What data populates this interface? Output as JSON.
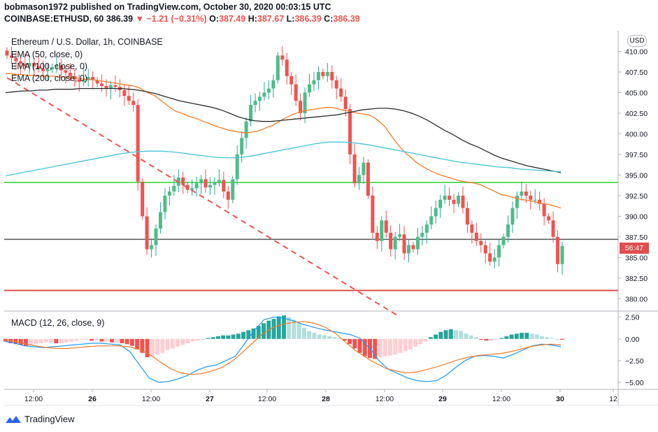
{
  "header": {
    "publisher_line": "bobmason1972 published on TradingView.com, October 30, 2020 00:03:15 UTC",
    "symbol": "COINBASE:ETHUSD, 60",
    "last": "386.39",
    "arrow": "▼",
    "change": "−1.21 (−0.31%)",
    "o_label": "O:",
    "o": "387.49",
    "h_label": "H:",
    "h": "387.67",
    "l_label": "L:",
    "l": "386.39",
    "c_label": "C:",
    "c": "386.39"
  },
  "legend": {
    "title": "Ethereum / U.S. Dollar, 1h, COINBASE",
    "ema50": "EMA (50, close, 0)",
    "ema100": "EMA (100, close, 0)",
    "ema200": "EMA (200, close, 0)",
    "macd": "MACD (12, 26, close, 9)"
  },
  "axis": {
    "currency": "USD",
    "countdown": "56:47"
  },
  "brand": "TradingView",
  "colors": {
    "up": "#26a69a",
    "up_candle": "#4fbc8a",
    "down": "#ef5350",
    "ema50": "#f57c2a",
    "ema100": "#2b2b2b",
    "ema200": "#45c3d8",
    "green_line": "#5ee05e",
    "red_line": "#e04e4e",
    "macd_line": "#2196f3",
    "signal_line": "#f57c2a"
  },
  "chart_data": {
    "type": "candlestick",
    "y_ticks": [
      "410.00",
      "407.50",
      "405.00",
      "402.50",
      "400.00",
      "397.50",
      "395.00",
      "392.50",
      "390.00",
      "387.50",
      "385.00",
      "382.50",
      "380.00"
    ],
    "ylim": [
      378.5,
      412.5
    ],
    "x_ticks": [
      "12:00",
      "26",
      "12:00",
      "27",
      "12:00",
      "28",
      "12:00",
      "29",
      "12:00",
      "30",
      "12"
    ],
    "x_tick_bold": [
      false,
      true,
      false,
      true,
      false,
      true,
      false,
      true,
      false,
      true,
      false
    ],
    "horizontal_levels": {
      "green": 394.1,
      "red": 381.0,
      "last_price": 387.2
    },
    "close_series": [
      409.5,
      409.2,
      408.8,
      408.5,
      408.2,
      408.6,
      408.2,
      407.9,
      407.6,
      407.8,
      408.1,
      408.3,
      407.7,
      407.4,
      407.0,
      406.6,
      406.3,
      406.5,
      406.9,
      406.5,
      406.1,
      405.8,
      405.5,
      405.9,
      405.7,
      405.3,
      404.6,
      404.0,
      403.5,
      394.2,
      390.0,
      386.0,
      386.5,
      388.5,
      390.5,
      392.5,
      393.0,
      393.7,
      394.7,
      393.8,
      393.2,
      393.4,
      394.0,
      394.5,
      393.5,
      393.8,
      394.1,
      394.4,
      393.0,
      392.0,
      394.5,
      397.5,
      399.5,
      401.5,
      403.5,
      404.0,
      404.5,
      405.0,
      405.5,
      406.5,
      409.5,
      409.0,
      407.0,
      406.0,
      404.0,
      402.5,
      405.0,
      406.0,
      406.5,
      407.5,
      407.0,
      407.5,
      406.5,
      405.5,
      404.5,
      403.0,
      397.5,
      394.0,
      395.0,
      396.5,
      392.5,
      388.0,
      387.0,
      389.5,
      388.0,
      386.0,
      387.5,
      387.8,
      385.5,
      386.5,
      386.0,
      387.5,
      388.0,
      389.0,
      390.0,
      391.0,
      392.0,
      392.5,
      392.0,
      391.5,
      392.5,
      391.0,
      389.0,
      388.0,
      387.0,
      386.5,
      385.5,
      384.5,
      385.0,
      386.5,
      387.5,
      389.0,
      391.0,
      392.5,
      393.0,
      392.5,
      392.0,
      392.0,
      391.5,
      390.0,
      389.5,
      387.5,
      384.2,
      386.4
    ],
    "ema_50": [
      407.3,
      407.3,
      407.2,
      407.2,
      407.1,
      407.1,
      407.0,
      407.0,
      407.0,
      407.0,
      406.9,
      406.9,
      406.8,
      406.8,
      406.7,
      406.6,
      406.6,
      406.5,
      406.4,
      406.3,
      406.2,
      406.1,
      406.0,
      405.9,
      405.8,
      405.6,
      405.2,
      404.9,
      404.6,
      404.1,
      403.6,
      403.1,
      402.7,
      402.5,
      402.2,
      402.0,
      401.8,
      401.5,
      401.3,
      401.0,
      400.8,
      400.6,
      400.4,
      400.3,
      400.2,
      400.1,
      400.2,
      400.3,
      400.5,
      400.8,
      401.0,
      401.4,
      401.8,
      402.1,
      402.4,
      402.6,
      402.8,
      402.9,
      403.0,
      403.1,
      403.2,
      403.2,
      403.1,
      402.9,
      402.8,
      402.6,
      402.5,
      402.4,
      402.3,
      402.0,
      401.5,
      400.9,
      400.0,
      399.1,
      398.3,
      397.6,
      397.1,
      396.5,
      396.1,
      395.7,
      395.4,
      395.1,
      394.9,
      394.7,
      394.5,
      394.3,
      394.2,
      394.1,
      394.0,
      393.8,
      393.5,
      393.2,
      392.9,
      392.6,
      392.5,
      392.3,
      392.1,
      392.0,
      391.9,
      391.8,
      391.6,
      391.5,
      391.4,
      391.2,
      391.0
    ],
    "ema_100": [
      405.0,
      405.1,
      405.2,
      405.2,
      405.3,
      405.3,
      405.4,
      405.4,
      405.4,
      405.5,
      405.5,
      405.5,
      405.5,
      405.5,
      405.5,
      405.4,
      405.3,
      405.1,
      404.9,
      404.6,
      404.3,
      404.0,
      403.8,
      403.6,
      403.4,
      403.2,
      402.9,
      402.5,
      402.1,
      401.8,
      401.6,
      401.5,
      401.5,
      401.6,
      401.7,
      401.8,
      401.9,
      402.0,
      402.1,
      402.2,
      402.3,
      402.5,
      402.7,
      402.9,
      403.0,
      403.1,
      403.1,
      403.0,
      402.8,
      402.5,
      402.1,
      401.6,
      401.0,
      400.4,
      399.9,
      399.3,
      398.8,
      398.4,
      397.9,
      397.4,
      397.0,
      396.7,
      396.4,
      396.1,
      395.9,
      395.7,
      395.5,
      395.3
    ],
    "ema_200": [
      394.9,
      395.2,
      395.5,
      395.8,
      396.1,
      396.4,
      396.7,
      397.0,
      397.3,
      397.6,
      397.8,
      397.9,
      397.9,
      397.8,
      397.6,
      397.4,
      397.2,
      397.1,
      397.1,
      397.3,
      397.6,
      397.9,
      398.2,
      398.5,
      398.8,
      399.0,
      399.0,
      398.9,
      398.7,
      398.4,
      398.1,
      397.8,
      397.5,
      397.2,
      396.9,
      396.6,
      396.4,
      396.2,
      396.0,
      395.9,
      395.7,
      395.6,
      395.5,
      395.4
    ],
    "trendline": {
      "from": [
        0,
        406.8
      ],
      "to": [
        87,
        377.8
      ],
      "style": "dashed"
    },
    "macd": {
      "y_ticks": [
        "2.50",
        "0.00",
        "−2.50",
        "−5.00"
      ],
      "ylim": [
        -5.8,
        3.2
      ],
      "histogram": [
        -0.3,
        -0.5,
        -0.6,
        -0.7,
        -0.8,
        -0.7,
        -0.6,
        -0.5,
        -0.4,
        -0.4,
        -0.5,
        -0.5,
        -0.4,
        -0.3,
        -0.2,
        -0.1,
        -0.1,
        -0.2,
        -0.2,
        -0.3,
        -0.3,
        -0.4,
        -0.4,
        -0.5,
        -0.6,
        -0.8,
        -1.2,
        -1.6,
        -2.1,
        -2.0,
        -1.8,
        -1.6,
        -1.3,
        -1.1,
        -0.9,
        -0.7,
        -0.5,
        -0.3,
        -0.2,
        -0.1,
        0.1,
        0.2,
        0.3,
        0.4,
        0.4,
        0.5,
        0.6,
        0.8,
        1.0,
        1.2,
        1.5,
        1.8,
        2.1,
        2.3,
        2.6,
        2.7,
        2.5,
        2.2,
        1.8,
        1.3,
        0.9,
        0.7,
        0.5,
        0.4,
        0.3,
        0.2,
        0.1,
        -0.2,
        -0.6,
        -1.1,
        -1.6,
        -2.0,
        -2.2,
        -2.3,
        -2.1,
        -2.0,
        -1.9,
        -1.8,
        -1.6,
        -1.4,
        -1.2,
        -0.9,
        -0.6,
        -0.3,
        0.2,
        0.5,
        0.8,
        1.0,
        1.1,
        1.0,
        0.9,
        0.6,
        0.4,
        0.2,
        -0.1,
        -0.2,
        -0.2,
        -0.1,
        0.1,
        0.3,
        0.5,
        0.6,
        0.7,
        0.7,
        0.6,
        0.5,
        0.3,
        0.2,
        0.1,
        0.0,
        -0.1
      ],
      "macd_line": [
        -0.3,
        -0.5,
        -0.8,
        -0.9,
        -1.0,
        -0.9,
        -0.8,
        -0.7,
        -0.6,
        -0.5,
        -0.5,
        -0.6,
        -0.7,
        -1.5,
        -3.0,
        -4.5,
        -5.0,
        -4.9,
        -4.6,
        -4.2,
        -3.6,
        -3.2,
        -3.0,
        -2.5,
        -2.0,
        -0.5,
        1.0,
        2.2,
        2.5,
        2.4,
        2.1,
        1.7,
        1.4,
        1.1,
        0.9,
        0.7,
        0.5,
        0.1,
        -1.0,
        -2.5,
        -3.5,
        -4.0,
        -4.5,
        -4.8,
        -4.9,
        -4.8,
        -4.2,
        -3.3,
        -2.5,
        -2.0,
        -1.9,
        -2.0,
        -2.2,
        -1.8,
        -1.3,
        -0.8,
        -0.6,
        -0.7,
        -0.9
      ],
      "signal_line": [
        -0.1,
        -0.3,
        -0.6,
        -0.8,
        -1.0,
        -1.1,
        -1.1,
        -1.0,
        -0.9,
        -0.8,
        -0.8,
        -0.8,
        -0.9,
        -1.2,
        -1.8,
        -2.6,
        -3.4,
        -3.9,
        -4.1,
        -4.0,
        -3.7,
        -3.3,
        -2.6,
        -1.6,
        -0.5,
        0.6,
        1.3,
        1.7,
        1.9,
        2.0,
        1.8,
        1.4,
        0.7,
        -0.3,
        -1.3,
        -2.1,
        -2.8,
        -3.4,
        -3.7,
        -3.9,
        -3.8,
        -3.5,
        -3.2,
        -2.8,
        -2.4,
        -2.1,
        -1.9,
        -1.8,
        -1.7,
        -1.5,
        -1.2,
        -0.9,
        -0.7,
        -0.6,
        -0.7
      ]
    }
  }
}
